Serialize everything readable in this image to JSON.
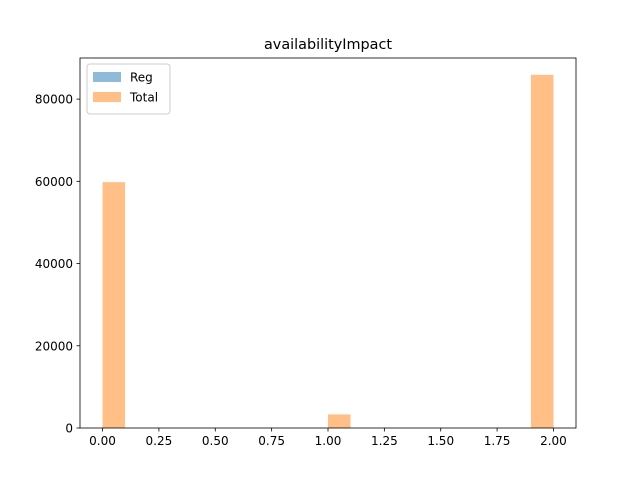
{
  "chart_data": {
    "type": "bar",
    "title": "availabilityImpact",
    "xlabel": "",
    "ylabel": "",
    "xlim": [
      -0.1,
      2.1
    ],
    "ylim": [
      0,
      90000
    ],
    "xticks": [
      0.0,
      0.25,
      0.5,
      0.75,
      1.0,
      1.25,
      1.5,
      1.75,
      2.0
    ],
    "xtick_labels": [
      "0.00",
      "0.25",
      "0.50",
      "0.75",
      "1.00",
      "1.25",
      "1.50",
      "1.75",
      "2.00"
    ],
    "yticks": [
      0,
      20000,
      40000,
      60000,
      80000
    ],
    "ytick_labels": [
      "0",
      "20000",
      "40000",
      "60000",
      "80000"
    ],
    "grid": false,
    "legend_position": "top-left",
    "bin_width": 0.1,
    "series": [
      {
        "name": "Reg",
        "color": "#1f77b4",
        "opacity": 0.5,
        "bins": [
          {
            "x0": 0.0,
            "x1": 0.1,
            "value": 0
          },
          {
            "x0": 1.0,
            "x1": 1.1,
            "value": 0
          },
          {
            "x0": 1.9,
            "x1": 2.0,
            "value": 0
          }
        ]
      },
      {
        "name": "Total",
        "color": "#ff7f0e",
        "opacity": 0.5,
        "bins": [
          {
            "x0": 0.0,
            "x1": 0.1,
            "value": 59800
          },
          {
            "x0": 1.0,
            "x1": 1.1,
            "value": 3300
          },
          {
            "x0": 1.9,
            "x1": 2.0,
            "value": 85900
          }
        ]
      }
    ]
  }
}
